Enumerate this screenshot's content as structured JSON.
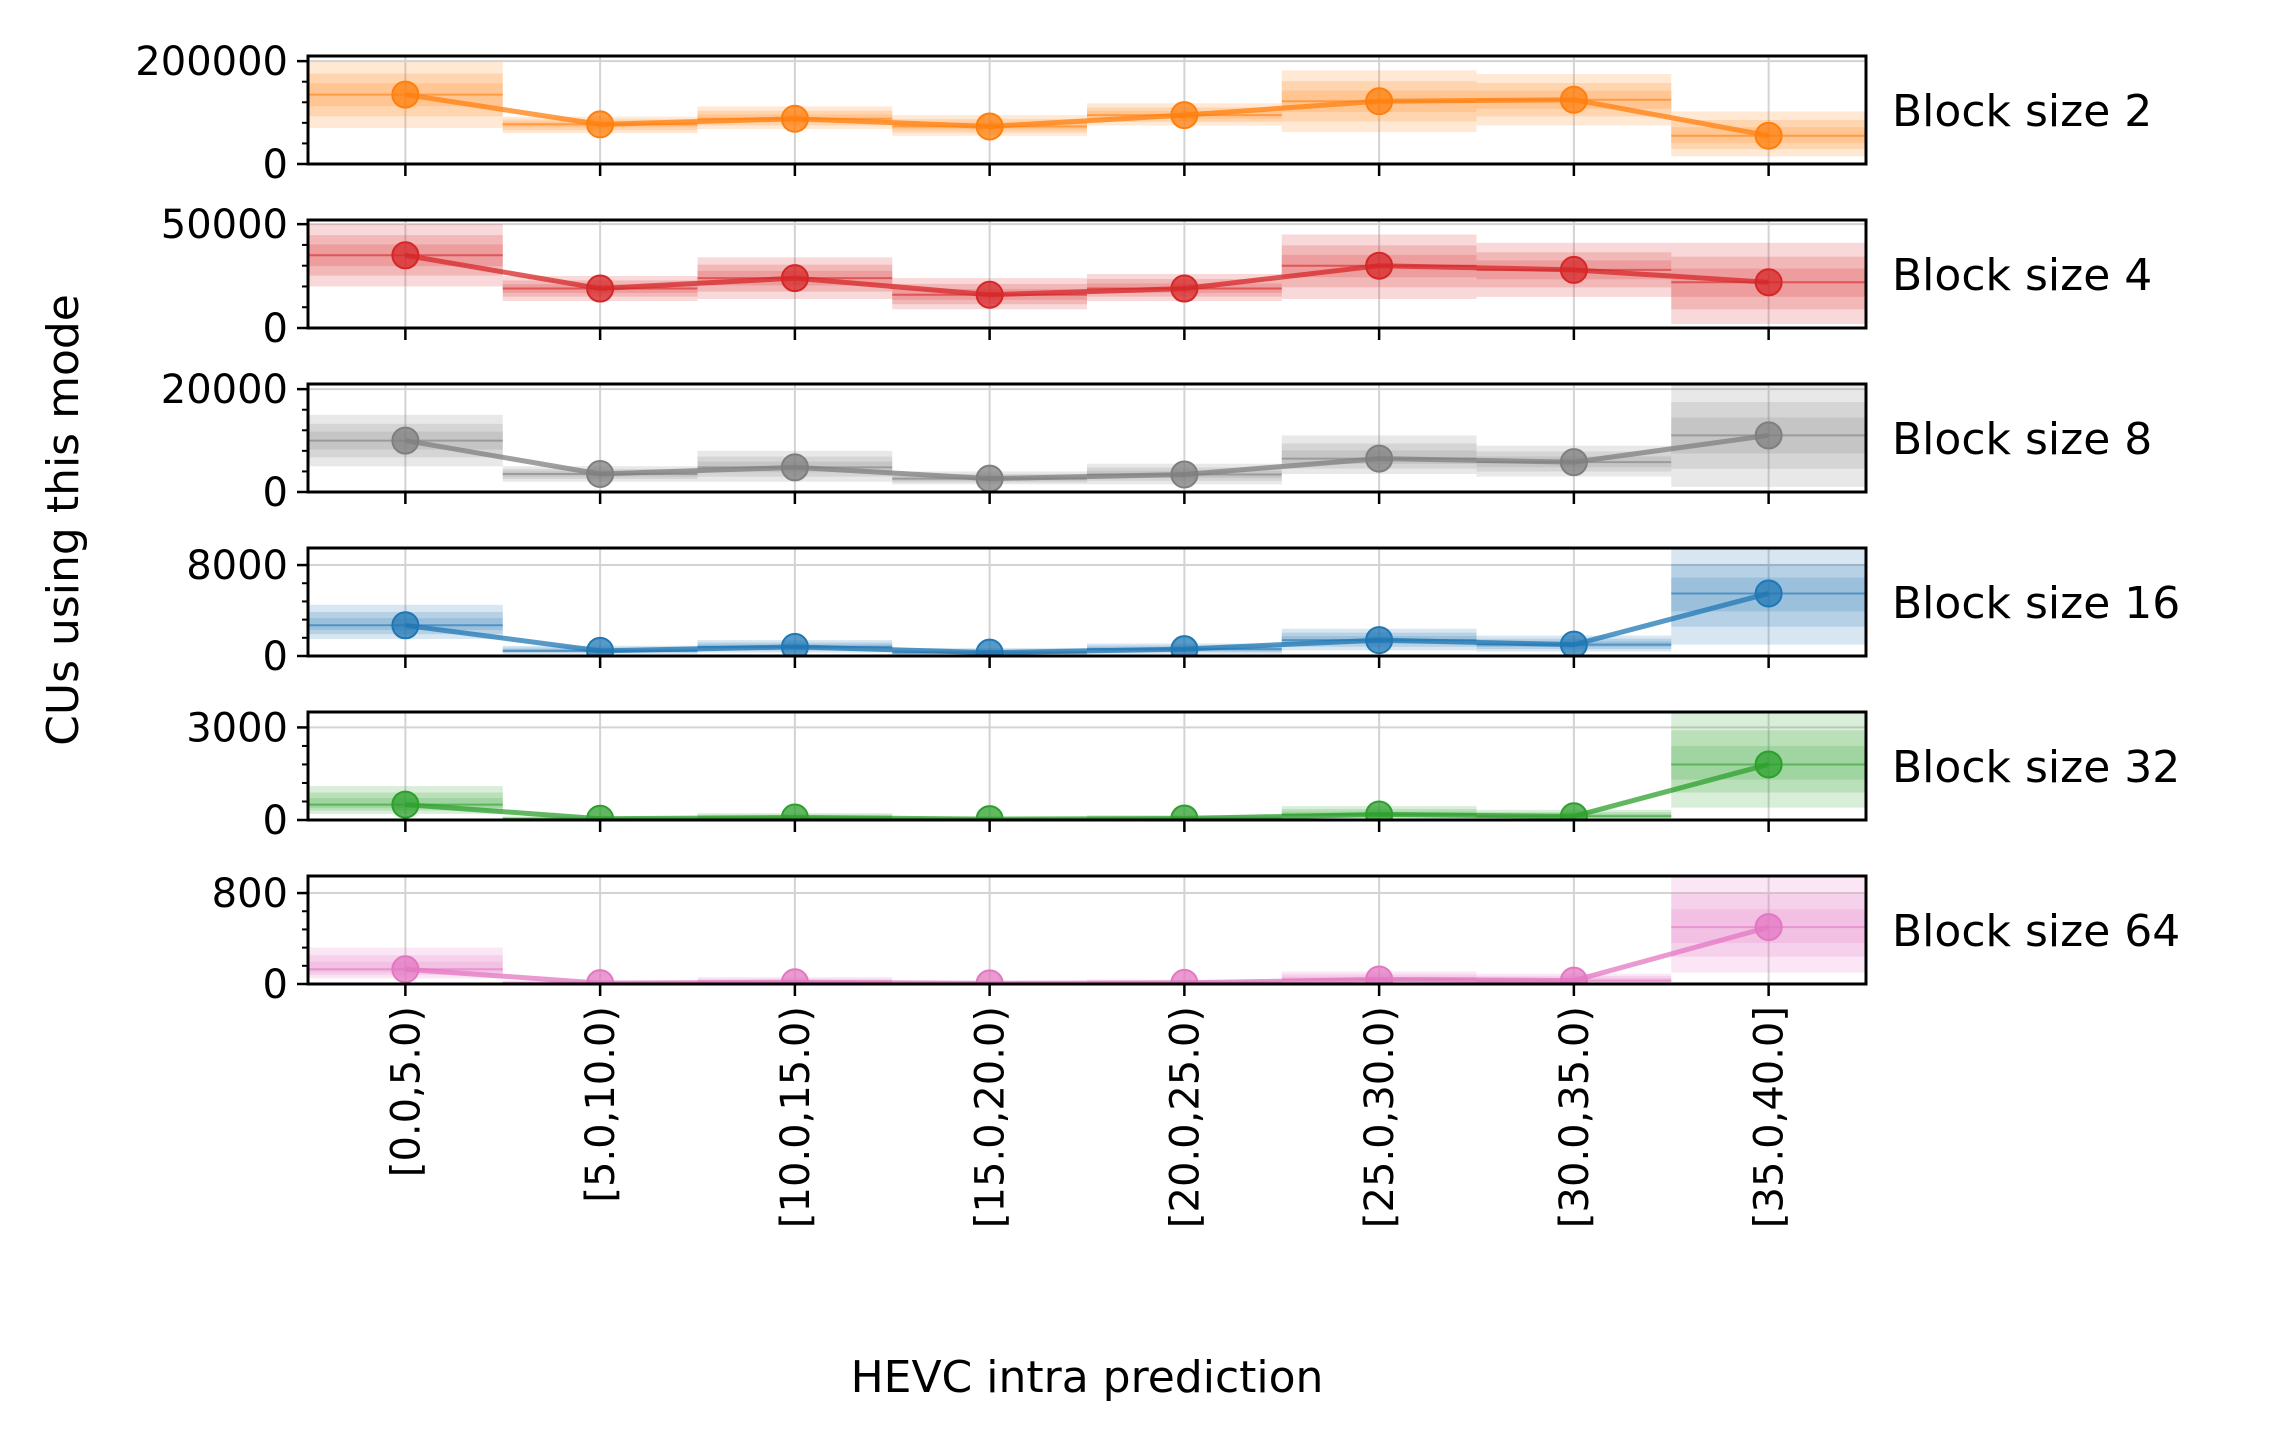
{
  "chart_data": {
    "type": "line",
    "xlabel": "HEVC intra prediction",
    "ylabel": "CUs using this mode",
    "categories": [
      "[0.0,5.0)",
      "[5.0,10.0)",
      "[10.0,15.0)",
      "[15.0,20.0)",
      "[20.0,25.0)",
      "[25.0,30.0)",
      "[30.0,35.0)",
      "[35.0,40.0]"
    ],
    "grid": true,
    "panels": [
      {
        "label": "Block size 2",
        "color": "#ff7f0e",
        "ylim": [
          0,
          210000
        ],
        "yticks": [
          0,
          200000
        ],
        "values": [
          135000,
          77000,
          88000,
          73000,
          95000,
          122000,
          125000,
          55000
        ],
        "band": [
          [
            70000,
            198000
          ],
          [
            60000,
            92000
          ],
          [
            68000,
            112000
          ],
          [
            55000,
            95000
          ],
          [
            75000,
            118000
          ],
          [
            62000,
            182000
          ],
          [
            75000,
            175000
          ],
          [
            15000,
            102000
          ]
        ]
      },
      {
        "label": "Block size 4",
        "color": "#d62728",
        "ylim": [
          0,
          52000
        ],
        "yticks": [
          0,
          50000
        ],
        "values": [
          35000,
          19000,
          24000,
          16000,
          19000,
          30000,
          28000,
          22000
        ],
        "band": [
          [
            20000,
            50000
          ],
          [
            13000,
            25000
          ],
          [
            14000,
            34000
          ],
          [
            9000,
            24000
          ],
          [
            13000,
            26000
          ],
          [
            14000,
            45000
          ],
          [
            15000,
            41000
          ],
          [
            2000,
            41000
          ]
        ]
      },
      {
        "label": "Block size 8",
        "color": "#7f7f7f",
        "ylim": [
          0,
          21000
        ],
        "yticks": [
          0,
          20000
        ],
        "values": [
          10000,
          3500,
          4800,
          2600,
          3400,
          6500,
          5800,
          11000
        ],
        "band": [
          [
            5000,
            15000
          ],
          [
            2000,
            5000
          ],
          [
            2000,
            8000
          ],
          [
            1500,
            4000
          ],
          [
            1500,
            5500
          ],
          [
            3500,
            11000
          ],
          [
            3000,
            9000
          ],
          [
            1000,
            21000
          ]
        ]
      },
      {
        "label": "Block size 16",
        "color": "#1f77b4",
        "ylim": [
          0,
          9500
        ],
        "yticks": [
          0,
          8000
        ],
        "values": [
          2700,
          450,
          800,
          300,
          600,
          1400,
          1000,
          5500
        ],
        "band": [
          [
            1500,
            4500
          ],
          [
            200,
            900
          ],
          [
            300,
            1400
          ],
          [
            100,
            700
          ],
          [
            200,
            1100
          ],
          [
            500,
            2400
          ],
          [
            400,
            1800
          ],
          [
            1000,
            9500
          ]
        ]
      },
      {
        "label": "Block size 32",
        "color": "#2ca02c",
        "ylim": [
          0,
          3500
        ],
        "yticks": [
          0,
          3000
        ],
        "values": [
          500,
          40,
          80,
          30,
          50,
          180,
          120,
          1800
        ],
        "band": [
          [
            200,
            1100
          ],
          [
            10,
            120
          ],
          [
            20,
            220
          ],
          [
            10,
            100
          ],
          [
            20,
            160
          ],
          [
            50,
            450
          ],
          [
            40,
            330
          ],
          [
            400,
            3500
          ]
        ]
      },
      {
        "label": "Block size 64",
        "color": "#e377c2",
        "ylim": [
          0,
          950
        ],
        "yticks": [
          0,
          800
        ],
        "values": [
          130,
          8,
          15,
          6,
          10,
          40,
          30,
          500
        ],
        "band": [
          [
            50,
            320
          ],
          [
            2,
            30
          ],
          [
            4,
            60
          ],
          [
            2,
            25
          ],
          [
            3,
            40
          ],
          [
            10,
            110
          ],
          [
            8,
            90
          ],
          [
            100,
            950
          ]
        ]
      }
    ]
  }
}
